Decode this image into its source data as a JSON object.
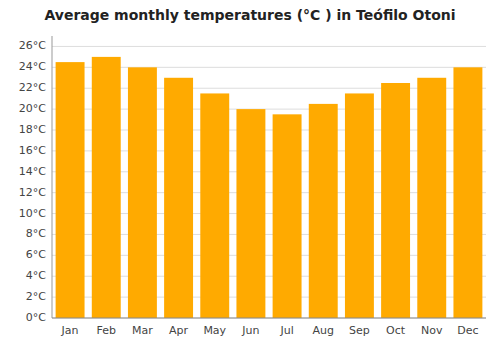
{
  "chart_data": {
    "type": "bar",
    "title": "Average monthly temperatures (°C ) in Teófilo Otoni",
    "categories": [
      "Jan",
      "Feb",
      "Mar",
      "Apr",
      "May",
      "Jun",
      "Jul",
      "Aug",
      "Sep",
      "Oct",
      "Nov",
      "Dec"
    ],
    "values": [
      24.5,
      25.0,
      24.0,
      23.0,
      21.5,
      20.0,
      19.5,
      20.5,
      21.5,
      22.5,
      23.0,
      24.0
    ],
    "color": "#FFAA00",
    "ylim": [
      0,
      27
    ],
    "yticks": [
      {
        "value": 0,
        "label": "0°C"
      },
      {
        "value": 2,
        "label": "2°C"
      },
      {
        "value": 4,
        "label": "4°C"
      },
      {
        "value": 6,
        "label": "6°C"
      },
      {
        "value": 8,
        "label": "8°C"
      },
      {
        "value": 10,
        "label": "10°C"
      },
      {
        "value": 12,
        "label": "12°C"
      },
      {
        "value": 14,
        "label": "14°C"
      },
      {
        "value": 16,
        "label": "16°C"
      },
      {
        "value": 18,
        "label": "18°C"
      },
      {
        "value": 20,
        "label": "20°C"
      },
      {
        "value": 22,
        "label": "22°C"
      },
      {
        "value": 24,
        "label": "24°C"
      },
      {
        "value": 26,
        "label": "26°C"
      }
    ],
    "grid": true
  }
}
